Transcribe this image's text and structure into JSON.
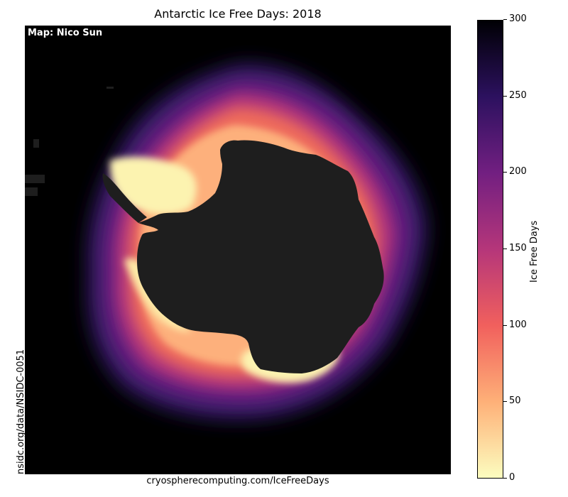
{
  "title": "Antarctic Ice Free Days: 2018",
  "map_credit": "Map: Nico Sun",
  "source_side": "nsidc.org/data/NSIDC-0051",
  "source_bottom": "cryospherecomputing.com/IceFreeDays",
  "map": {
    "background_color": "#000000",
    "land_color": "#1e1e1e",
    "region": "Antarctica",
    "colormap": "magma_r"
  },
  "colorbar": {
    "label": "Ice Free Days",
    "min": 0,
    "max": 300,
    "ticks": [
      {
        "value": 0,
        "label": "0"
      },
      {
        "value": 50,
        "label": "50"
      },
      {
        "value": 100,
        "label": "100"
      },
      {
        "value": 150,
        "label": "150"
      },
      {
        "value": 200,
        "label": "200"
      },
      {
        "value": 250,
        "label": "250"
      },
      {
        "value": 300,
        "label": "300"
      }
    ],
    "stops": [
      {
        "value": 0,
        "color": "#fcfdbf"
      },
      {
        "value": 50,
        "color": "#feb078"
      },
      {
        "value": 100,
        "color": "#f1605d"
      },
      {
        "value": 150,
        "color": "#b5367a"
      },
      {
        "value": 200,
        "color": "#721f81"
      },
      {
        "value": 250,
        "color": "#2c115f"
      },
      {
        "value": 300,
        "color": "#000004"
      }
    ]
  }
}
